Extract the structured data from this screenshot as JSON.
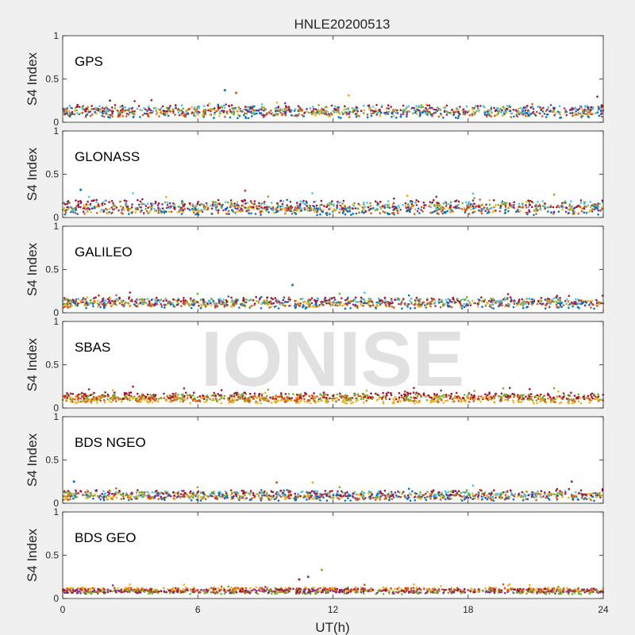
{
  "figure": {
    "title": "HNLE20200513",
    "xlabel": "UT(h)",
    "watermark": "IONISE",
    "x_ticks": [
      "0",
      "6",
      "12",
      "18",
      "24"
    ],
    "y_ticks": [
      "0",
      "0.5",
      "1"
    ]
  },
  "chart_data": [
    {
      "type": "scatter",
      "panel": "GPS",
      "ylabel": "S4 Index",
      "xlim": [
        0,
        24
      ],
      "ylim": [
        0,
        1
      ],
      "grid": false,
      "series_colors": [
        "#0072BD",
        "#D95319",
        "#EDB120",
        "#7E2F8E",
        "#77AC30",
        "#4DBEEE",
        "#A2142F"
      ],
      "typical_range": [
        0.05,
        0.2
      ],
      "peaks": [
        {
          "x": 7.2,
          "y": 0.37
        },
        {
          "x": 7.7,
          "y": 0.34
        },
        {
          "x": 12.7,
          "y": 0.31
        },
        {
          "x": 2.1,
          "y": 0.25
        }
      ]
    },
    {
      "type": "scatter",
      "panel": "GLONASS",
      "ylabel": "S4 Index",
      "xlim": [
        0,
        24
      ],
      "ylim": [
        0,
        1
      ],
      "grid": false,
      "series_colors": [
        "#0072BD",
        "#D95319",
        "#EDB120",
        "#7E2F8E",
        "#77AC30",
        "#4DBEEE",
        "#A2142F"
      ],
      "typical_range": [
        0.03,
        0.2
      ],
      "peaks": [
        {
          "x": 0.8,
          "y": 0.32
        },
        {
          "x": 8.1,
          "y": 0.31
        },
        {
          "x": 15.3,
          "y": 0.25
        }
      ]
    },
    {
      "type": "scatter",
      "panel": "GALILEO",
      "ylabel": "S4 Index",
      "xlim": [
        0,
        24
      ],
      "ylim": [
        0,
        1
      ],
      "grid": false,
      "series_colors": [
        "#0072BD",
        "#D95319",
        "#EDB120",
        "#7E2F8E",
        "#77AC30",
        "#4DBEEE",
        "#A2142F"
      ],
      "typical_range": [
        0.05,
        0.18
      ],
      "peaks": [
        {
          "x": 10.2,
          "y": 0.32
        },
        {
          "x": 1.6,
          "y": 0.2
        }
      ]
    },
    {
      "type": "scatter",
      "panel": "SBAS",
      "ylabel": "S4 Index",
      "xlim": [
        0,
        24
      ],
      "ylim": [
        0,
        1
      ],
      "grid": false,
      "series_colors": [
        "#EDB120",
        "#D95319",
        "#77AC30",
        "#A2142F"
      ],
      "typical_range": [
        0.05,
        0.18
      ],
      "peaks": [
        {
          "x": 13.5,
          "y": 0.2
        },
        {
          "x": 15.2,
          "y": 0.19
        }
      ]
    },
    {
      "type": "scatter",
      "panel": "BDS NGEO",
      "ylabel": "S4 Index",
      "xlim": [
        0,
        24
      ],
      "ylim": [
        0,
        1
      ],
      "grid": false,
      "series_colors": [
        "#0072BD",
        "#D95319",
        "#EDB120",
        "#7E2F8E",
        "#77AC30",
        "#4DBEEE",
        "#A2142F"
      ],
      "typical_range": [
        0.03,
        0.15
      ],
      "peaks": [
        {
          "x": 0.5,
          "y": 0.25
        },
        {
          "x": 9.5,
          "y": 0.24
        },
        {
          "x": 11.1,
          "y": 0.24
        },
        {
          "x": 22.6,
          "y": 0.25
        }
      ]
    },
    {
      "type": "scatter",
      "panel": "BDS GEO",
      "ylabel": "S4 Index",
      "xlim": [
        0,
        24
      ],
      "ylim": [
        0,
        1
      ],
      "grid": false,
      "series_colors": [
        "#77AC30",
        "#7E2F8E",
        "#A2142F",
        "#D95319",
        "#EDB120"
      ],
      "typical_range": [
        0.05,
        0.13
      ],
      "peaks": [
        {
          "x": 11.5,
          "y": 0.33
        },
        {
          "x": 10.9,
          "y": 0.25
        },
        {
          "x": 10.5,
          "y": 0.22
        }
      ]
    }
  ]
}
